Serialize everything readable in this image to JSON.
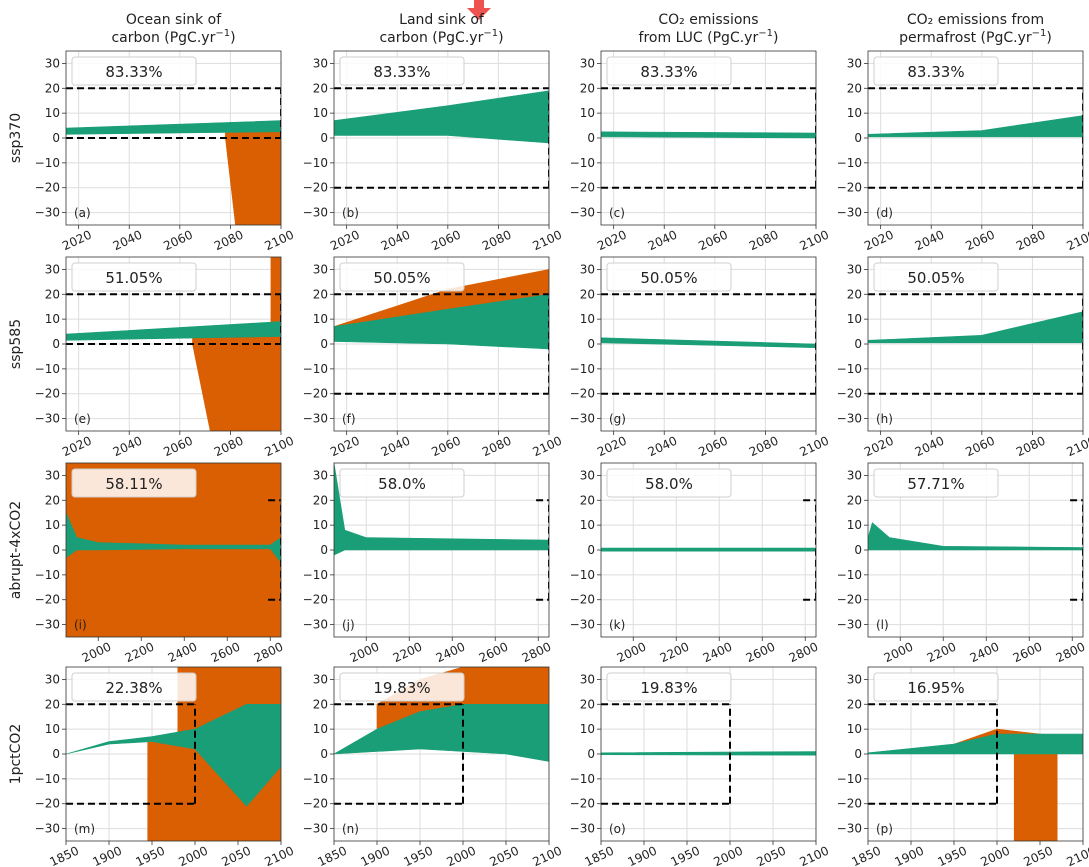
{
  "colors": {
    "feasible": "#1a9e77",
    "infeasible": "#d95f02",
    "other": "#808080",
    "arrow": "#ef5350",
    "box_threshold": "#000000"
  },
  "columns": [
    {
      "line1": "Ocean sink of",
      "line2": "carbon (PgC.yr",
      "sup": "−1",
      "tail": ")"
    },
    {
      "line1": "Land sink of",
      "line2": "carbon (PgC.yr",
      "sup": "−1",
      "tail": ")"
    },
    {
      "line1": "CO₂ emissions",
      "line2": "from LUC (PgC.yr",
      "sup": "−1",
      "tail": ")"
    },
    {
      "line1": "CO₂ emissions from",
      "line2": "permafrost (PgC.yr",
      "sup": "−1",
      "tail": ")"
    }
  ],
  "rows": [
    {
      "label": "ssp370"
    },
    {
      "label": "ssp585"
    },
    {
      "label": "abrupt-4xCO2"
    },
    {
      "label": "1pctCO2"
    }
  ],
  "chart_data": {
    "type": "line",
    "description_type": "small-multiples band plot (ensemble envelopes)",
    "yticks": [
      30,
      20,
      10,
      0,
      -10,
      -20,
      -30
    ],
    "ylim": [
      -35,
      35
    ],
    "panels": [
      {
        "id": "a",
        "label": "(a)",
        "pct": "83.33%",
        "xlim": [
          2015,
          2100
        ],
        "xticks": [
          2020,
          2040,
          2060,
          2080,
          2100
        ],
        "box": {
          "x0": 2015,
          "x1": 2100,
          "y0": 0,
          "y1": 20
        },
        "green": {
          "x": [
            2015,
            2100
          ],
          "lo": [
            1.5,
            2.5
          ],
          "hi": [
            4,
            7
          ]
        },
        "orange": {
          "x": [
            2078,
            2082,
            2085,
            2095,
            2100
          ],
          "lo": [
            0,
            -35,
            -35,
            -35,
            -35
          ],
          "hi": [
            3,
            3,
            3,
            3,
            3
          ]
        }
      },
      {
        "id": "b",
        "label": "(b)",
        "pct": "83.33%",
        "xlim": [
          2015,
          2100
        ],
        "xticks": [
          2020,
          2040,
          2060,
          2080,
          2100
        ],
        "box": {
          "x0": 2015,
          "x1": 2100,
          "y0": -20,
          "y1": 20
        },
        "green": {
          "x": [
            2015,
            2060,
            2100
          ],
          "lo": [
            1,
            1,
            -2
          ],
          "hi": [
            7,
            13,
            19
          ]
        }
      },
      {
        "id": "c",
        "label": "(c)",
        "pct": "83.33%",
        "xlim": [
          2015,
          2100
        ],
        "xticks": [
          2020,
          2040,
          2060,
          2080,
          2100
        ],
        "box": {
          "x0": 2015,
          "x1": 2100,
          "y0": -20,
          "y1": 20
        },
        "green": {
          "x": [
            2015,
            2100
          ],
          "lo": [
            0.5,
            0
          ],
          "hi": [
            2.5,
            2
          ]
        }
      },
      {
        "id": "d",
        "label": "(d)",
        "pct": "83.33%",
        "xlim": [
          2015,
          2100
        ],
        "xticks": [
          2020,
          2040,
          2060,
          2080,
          2100
        ],
        "box": {
          "x0": 2015,
          "x1": 2100,
          "y0": -20,
          "y1": 20
        },
        "green": {
          "x": [
            2015,
            2060,
            2100
          ],
          "lo": [
            0.5,
            0.5,
            0.5
          ],
          "hi": [
            1.5,
            3,
            9
          ]
        }
      },
      {
        "id": "e",
        "label": "(e)",
        "pct": "51.05%",
        "xlim": [
          2015,
          2100
        ],
        "xticks": [
          2020,
          2040,
          2060,
          2080,
          2100
        ],
        "box": {
          "x0": 2015,
          "x1": 2100,
          "y0": 0,
          "y1": 20
        },
        "green": {
          "x": [
            2015,
            2100
          ],
          "lo": [
            1.5,
            3
          ],
          "hi": [
            4,
            9
          ]
        },
        "orange": {
          "x": [
            2065,
            2072,
            2090,
            2100
          ],
          "lo": [
            0,
            -35,
            -35,
            -35
          ],
          "hi": [
            3,
            3,
            3,
            3
          ]
        },
        "orange2": {
          "x": [
            2096,
            2100
          ],
          "lo": [
            7,
            7
          ],
          "hi": [
            35,
            35
          ]
        }
      },
      {
        "id": "f",
        "label": "(f)",
        "pct": "50.05%",
        "xlim": [
          2015,
          2100
        ],
        "xticks": [
          2020,
          2040,
          2060,
          2080,
          2100
        ],
        "box": {
          "x0": 2015,
          "x1": 2100,
          "y0": -20,
          "y1": 20
        },
        "orange": {
          "x": [
            2015,
            2060,
            2100
          ],
          "lo": [
            4,
            12,
            18
          ],
          "hi": [
            7,
            22,
            30
          ]
        },
        "green": {
          "x": [
            2015,
            2060,
            2100
          ],
          "lo": [
            1,
            0,
            -2
          ],
          "hi": [
            7,
            14,
            20
          ]
        }
      },
      {
        "id": "g",
        "label": "(g)",
        "pct": "50.05%",
        "xlim": [
          2015,
          2100
        ],
        "xticks": [
          2020,
          2040,
          2060,
          2080,
          2100
        ],
        "box": {
          "x0": 2015,
          "x1": 2100,
          "y0": -20,
          "y1": 20
        },
        "green": {
          "x": [
            2015,
            2100
          ],
          "lo": [
            0.5,
            -1.5
          ],
          "hi": [
            2.5,
            0
          ]
        }
      },
      {
        "id": "h",
        "label": "(h)",
        "pct": "50.05%",
        "xlim": [
          2015,
          2100
        ],
        "xticks": [
          2020,
          2040,
          2060,
          2080,
          2100
        ],
        "box": {
          "x0": 2015,
          "x1": 2100,
          "y0": -20,
          "y1": 20
        },
        "green": {
          "x": [
            2015,
            2060,
            2100
          ],
          "lo": [
            0.5,
            0.5,
            0.5
          ],
          "hi": [
            1.5,
            3.5,
            13
          ]
        }
      },
      {
        "id": "i",
        "label": "(i)",
        "pct": "58.11%",
        "xlim": [
          1850,
          2850
        ],
        "xticks": [
          2000,
          2200,
          2400,
          2600,
          2800
        ],
        "box": {
          "x0": 2790,
          "x1": 2850,
          "y0": -20,
          "y1": 20
        },
        "orange": {
          "x": [
            1850,
            2850
          ],
          "lo": [
            -35,
            -35
          ],
          "hi": [
            35,
            35
          ]
        },
        "green": {
          "x": [
            1850,
            1900,
            2000,
            2400,
            2800,
            2850
          ],
          "lo": [
            -3,
            0,
            0,
            0.5,
            0.5,
            -5
          ],
          "hi": [
            15,
            5,
            3,
            2,
            2,
            5
          ]
        }
      },
      {
        "id": "j",
        "label": "(j)",
        "pct": "58.0%",
        "xlim": [
          1850,
          2850
        ],
        "xticks": [
          2000,
          2200,
          2400,
          2600,
          2800
        ],
        "box": {
          "x0": 2790,
          "x1": 2850,
          "y0": -20,
          "y1": 20
        },
        "green": {
          "x": [
            1850,
            1900,
            2000,
            2850
          ],
          "lo": [
            -2,
            0,
            0,
            0
          ],
          "hi": [
            35,
            8,
            5,
            4
          ]
        }
      },
      {
        "id": "k",
        "label": "(k)",
        "pct": "58.0%",
        "xlim": [
          1850,
          2850
        ],
        "xticks": [
          2000,
          2200,
          2400,
          2600,
          2800
        ],
        "box": {
          "x0": 2790,
          "x1": 2850,
          "y0": -20,
          "y1": 20
        },
        "green": {
          "x": [
            1850,
            2850
          ],
          "lo": [
            -0.5,
            -0.5
          ],
          "hi": [
            0.8,
            0.8
          ]
        }
      },
      {
        "id": "l",
        "label": "(l)",
        "pct": "57.71%",
        "xlim": [
          1850,
          2850
        ],
        "xticks": [
          2000,
          2200,
          2400,
          2600,
          2800
        ],
        "box": {
          "x0": 2790,
          "x1": 2850,
          "y0": -20,
          "y1": 20
        },
        "green": {
          "x": [
            1850,
            1870,
            1950,
            2200,
            2850
          ],
          "lo": [
            0,
            0,
            0,
            0,
            0
          ],
          "hi": [
            5,
            11,
            5,
            1.5,
            1
          ]
        }
      },
      {
        "id": "m",
        "label": "(m)",
        "pct": "22.38%",
        "xlim": [
          1850,
          2100
        ],
        "xticks": [
          1850,
          1900,
          1950,
          2000,
          2050,
          2100
        ],
        "box": {
          "x0": 1850,
          "x1": 2000,
          "y0": -20,
          "y1": 20
        },
        "orange": {
          "x": [
            1945,
            1950,
            2100
          ],
          "lo": [
            -35,
            -35,
            -35
          ],
          "hi": [
            5,
            5,
            5
          ]
        },
        "orange2": {
          "x": [
            1980,
            2100
          ],
          "lo": [
            5,
            5
          ],
          "hi": [
            35,
            35
          ]
        },
        "green": {
          "x": [
            1850,
            1900,
            1950,
            2000,
            2060,
            2100
          ],
          "lo": [
            0,
            4,
            5,
            2,
            -21,
            -5
          ],
          "hi": [
            0,
            5,
            7,
            10,
            20,
            20
          ]
        }
      },
      {
        "id": "n",
        "label": "(n)",
        "pct": "19.83%",
        "xlim": [
          1850,
          2100
        ],
        "xticks": [
          1850,
          1900,
          1950,
          2000,
          2050,
          2100
        ],
        "box": {
          "x0": 1850,
          "x1": 2000,
          "y0": -20,
          "y1": 20
        },
        "orange": {
          "x": [
            1900,
            1950,
            2000,
            2100
          ],
          "lo": [
            10,
            15,
            20,
            20
          ],
          "hi": [
            20,
            30,
            35,
            35
          ]
        },
        "green": {
          "x": [
            1850,
            1900,
            1950,
            2000,
            2050,
            2100
          ],
          "lo": [
            0,
            1,
            2,
            1,
            0,
            -3
          ],
          "hi": [
            0,
            10,
            17,
            20,
            20,
            20
          ]
        }
      },
      {
        "id": "o",
        "label": "(o)",
        "pct": "19.83%",
        "xlim": [
          1850,
          2100
        ],
        "xticks": [
          1850,
          1900,
          1950,
          2000,
          2050,
          2100
        ],
        "box": {
          "x0": 1850,
          "x1": 2000,
          "y0": -20,
          "y1": 20
        },
        "green": {
          "x": [
            1850,
            2100
          ],
          "lo": [
            -0.3,
            -0.5
          ],
          "hi": [
            0.5,
            1
          ]
        }
      },
      {
        "id": "p",
        "label": "(p)",
        "pct": "16.95%",
        "xlim": [
          1850,
          2100
        ],
        "xticks": [
          1850,
          1900,
          1950,
          2000,
          2050,
          2100
        ],
        "box": {
          "x0": 1850,
          "x1": 2000,
          "y0": -20,
          "y1": 20
        },
        "orange": {
          "x": [
            1950,
            2000,
            2050,
            2100
          ],
          "lo": [
            1,
            3,
            2,
            2
          ],
          "hi": [
            4,
            10,
            8,
            7
          ]
        },
        "orange2": {
          "x": [
            2020,
            2030,
            2070
          ],
          "lo": [
            -35,
            -35,
            -35
          ],
          "hi": [
            0,
            0,
            0
          ]
        },
        "green": {
          "x": [
            1850,
            1950,
            2000,
            2050,
            2100
          ],
          "lo": [
            0,
            0,
            0,
            0,
            0
          ],
          "hi": [
            0.5,
            4,
            8,
            8,
            8
          ]
        }
      }
    ]
  }
}
